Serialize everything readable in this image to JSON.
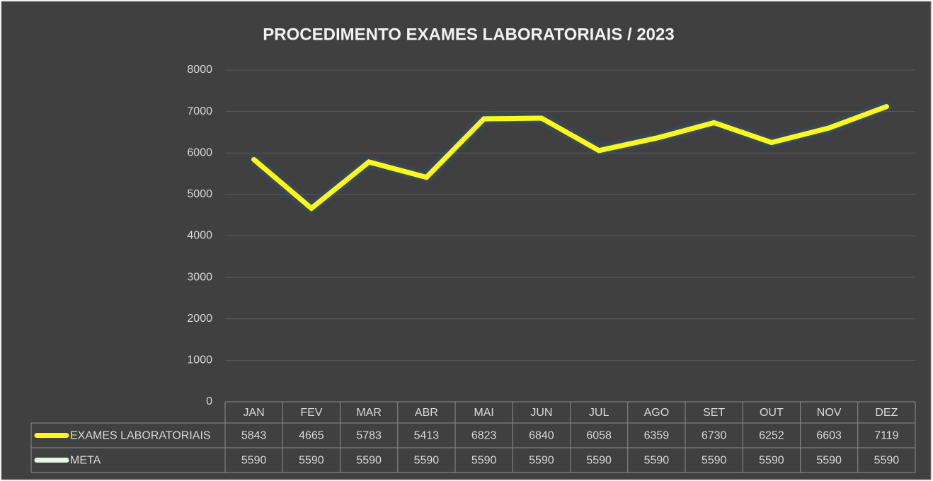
{
  "chart_data": {
    "type": "line",
    "title": "PROCEDIMENTO EXAMES LABORATORIAIS / 2023",
    "categories": [
      "JAN",
      "FEV",
      "MAR",
      "ABR",
      "MAI",
      "JUN",
      "JUL",
      "AGO",
      "SET",
      "OUT",
      "NOV",
      "DEZ"
    ],
    "series": [
      {
        "name": "EXAMES LABORATORIAIS",
        "color": "#ffff00",
        "values": [
          5843,
          4665,
          5783,
          5413,
          6823,
          6840,
          6058,
          6359,
          6730,
          6252,
          6603,
          7119
        ]
      },
      {
        "name": "META",
        "color": "#eaf6e4",
        "values": [
          5590,
          5590,
          5590,
          5590,
          5590,
          5590,
          5590,
          5590,
          5590,
          5590,
          5590,
          5590
        ]
      }
    ],
    "ylim": [
      0,
      8000
    ],
    "yticks": [
      0,
      1000,
      2000,
      3000,
      4000,
      5000,
      6000,
      7000,
      8000
    ],
    "grid": true,
    "data_table": true
  }
}
